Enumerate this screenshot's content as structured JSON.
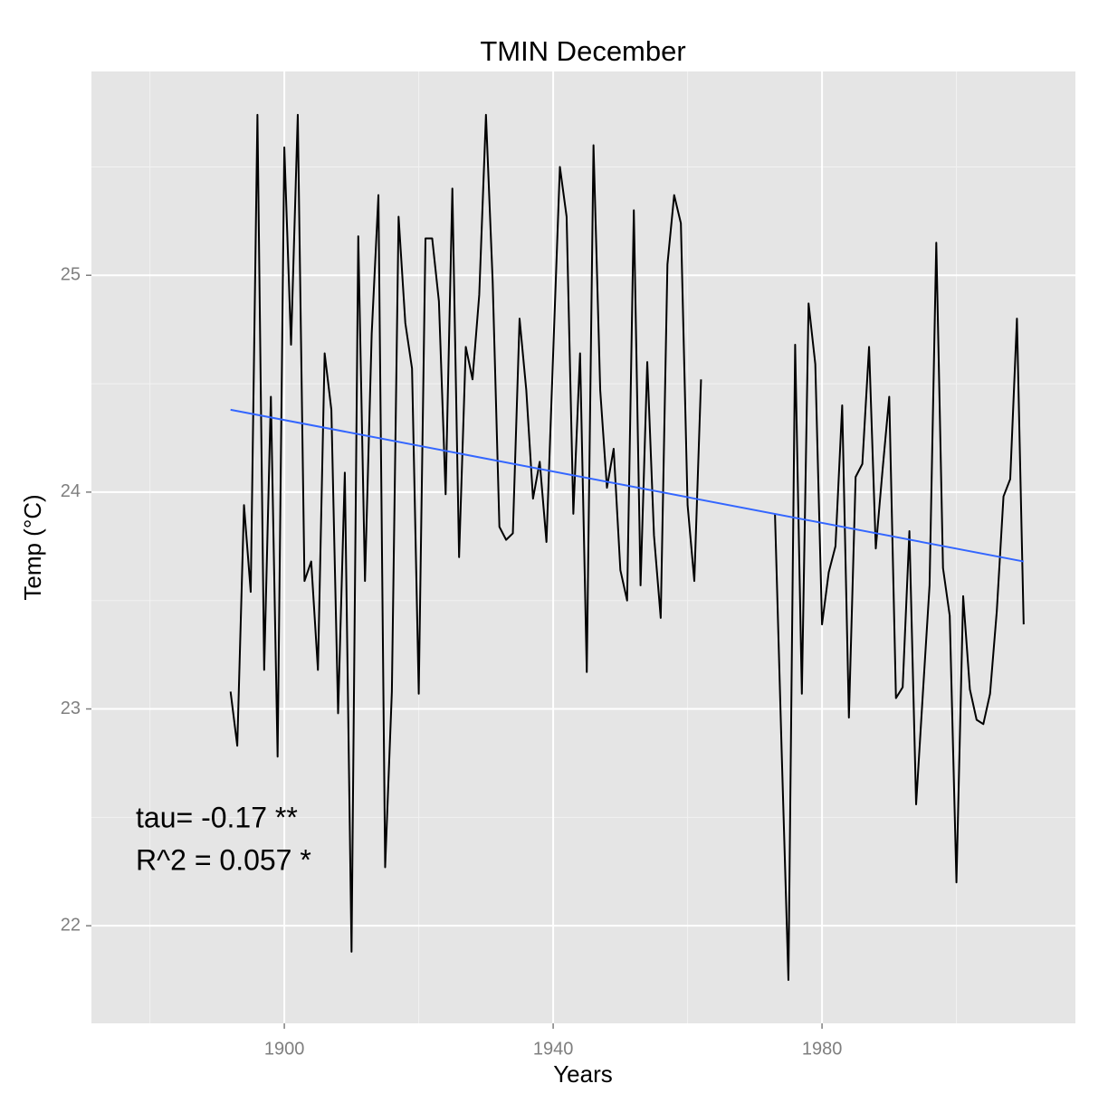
{
  "chart_data": {
    "type": "line",
    "title": "TMIN December",
    "x_label": "Years",
    "y_label": "Temp (°C)",
    "x": [
      1892,
      1893,
      1894,
      1895,
      1896,
      1897,
      1898,
      1899,
      1900,
      1901,
      1902,
      1903,
      1904,
      1905,
      1906,
      1907,
      1908,
      1909,
      1910,
      1911,
      1912,
      1913,
      1914,
      1915,
      1916,
      1917,
      1918,
      1919,
      1920,
      1921,
      1922,
      1923,
      1924,
      1925,
      1926,
      1927,
      1928,
      1929,
      1930,
      1931,
      1932,
      1933,
      1934,
      1935,
      1936,
      1937,
      1938,
      1939,
      1940,
      1941,
      1942,
      1943,
      1944,
      1945,
      1946,
      1947,
      1948,
      1949,
      1950,
      1951,
      1952,
      1953,
      1954,
      1955,
      1956,
      1957,
      1958,
      1959,
      1960,
      1961,
      1962,
      1963,
      1964,
      1965,
      1966,
      1967,
      1968,
      1969,
      1970,
      1971,
      1972,
      1973,
      1974,
      1975,
      1976,
      1977,
      1978,
      1979,
      1980,
      1981,
      1982,
      1983,
      1984,
      1985,
      1986,
      1987,
      1988,
      1989,
      1990,
      1991,
      1992,
      1993,
      1994,
      1995,
      1996,
      1997,
      1998,
      1999,
      2000,
      2001,
      2002,
      2003,
      2004,
      2005,
      2006,
      2007,
      2008,
      2009,
      2010
    ],
    "series": [
      {
        "color": "#000000",
        "values": [
          23.08,
          22.83,
          23.94,
          23.54,
          25.74,
          23.18,
          24.44,
          22.78,
          25.59,
          24.68,
          25.74,
          23.59,
          23.68,
          23.18,
          24.64,
          24.38,
          22.98,
          24.09,
          21.88,
          25.18,
          23.59,
          24.73,
          25.37,
          22.27,
          23.08,
          25.27,
          24.78,
          24.57,
          23.07,
          25.17,
          25.17,
          24.88,
          23.99,
          25.4,
          23.7,
          24.67,
          24.52,
          24.91,
          25.74,
          24.97,
          23.84,
          23.78,
          23.81,
          24.8,
          24.47,
          23.97,
          24.14,
          23.77,
          24.64,
          25.5,
          25.27,
          23.9,
          24.64,
          23.17,
          25.6,
          24.47,
          24.02,
          24.2,
          23.64,
          23.5,
          25.3,
          23.57,
          24.6,
          23.8,
          23.42,
          25.05,
          25.37,
          25.24,
          23.94,
          23.59,
          24.52,
          null,
          null,
          null,
          null,
          null,
          null,
          null,
          null,
          null,
          null,
          23.9,
          22.8,
          21.75,
          24.68,
          23.07,
          24.87,
          24.59,
          23.39,
          23.63,
          23.75,
          24.4,
          22.96,
          24.07,
          24.13,
          24.67,
          23.74,
          24.1,
          24.44,
          23.05,
          23.1,
          23.82,
          22.56,
          23.07,
          23.57,
          25.15,
          23.65,
          23.43,
          22.2,
          23.52,
          23.09,
          22.95,
          22.93,
          23.07,
          23.45,
          23.98,
          24.06,
          24.8,
          23.39
        ]
      }
    ],
    "trend": {
      "color": "#3366ff",
      "x": [
        1892,
        2010
      ],
      "values": [
        24.38,
        23.68
      ]
    },
    "annotations": [
      "tau= -0.17 **",
      "R^2 =  0.057 *"
    ],
    "xlim": [
      1871.3,
      2017.7
    ],
    "ylim": [
      21.55,
      25.94
    ],
    "xticks": [
      1900,
      1940,
      1980
    ],
    "yticks": [
      22,
      23,
      24,
      25
    ],
    "grid": true
  }
}
